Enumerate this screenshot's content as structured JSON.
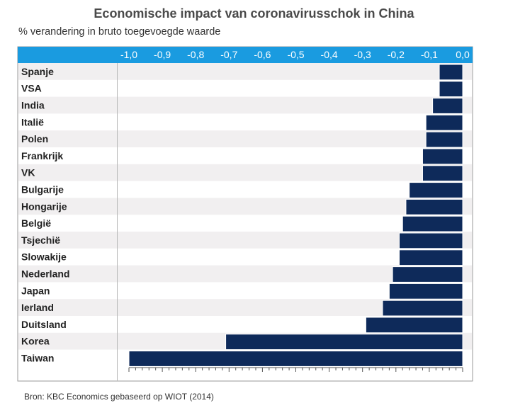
{
  "title": "Economische impact van coronavirusschok in China",
  "subtitle": "% verandering in bruto toegevoegde waarde",
  "source": "Bron: KBC Economics gebaseerd op WIOT (2014)",
  "colors": {
    "header": "#1a9be0",
    "bar": "#0e2a5a",
    "stripe": "#f1eff0",
    "frame": "#9a9a9a"
  },
  "chart_data": {
    "type": "bar",
    "orientation": "horizontal",
    "title": "Economische impact van coronavirusschok in China",
    "subtitle": "% verandering in bruto toegevoegde waarde",
    "xlim": [
      -1.0,
      0.0
    ],
    "ticks": [
      "-1,0",
      "-0,9",
      "-0,8",
      "-0,7",
      "-0,6",
      "-0,5",
      "-0,4",
      "-0,3",
      "-0,2",
      "-0,1",
      "0,0"
    ],
    "tick_values": [
      -1.0,
      -0.9,
      -0.8,
      -0.7,
      -0.6,
      -0.5,
      -0.4,
      -0.3,
      -0.2,
      -0.1,
      0.0
    ],
    "axis_position": "top",
    "categories": [
      "Spanje",
      "VSA",
      "India",
      "Italië",
      "Polen",
      "Frankrijk",
      "VK",
      "Bulgarije",
      "Hongarije",
      "België",
      "Tsjechië",
      "Slowakije",
      "Nederland",
      "Japan",
      "Ierland",
      "Duitsland",
      "Korea",
      "Taiwan"
    ],
    "values": [
      -0.07,
      -0.07,
      -0.09,
      -0.11,
      -0.11,
      -0.12,
      -0.12,
      -0.16,
      -0.17,
      -0.18,
      -0.19,
      -0.19,
      -0.21,
      -0.22,
      -0.24,
      -0.29,
      -0.71,
      -1.0
    ]
  }
}
